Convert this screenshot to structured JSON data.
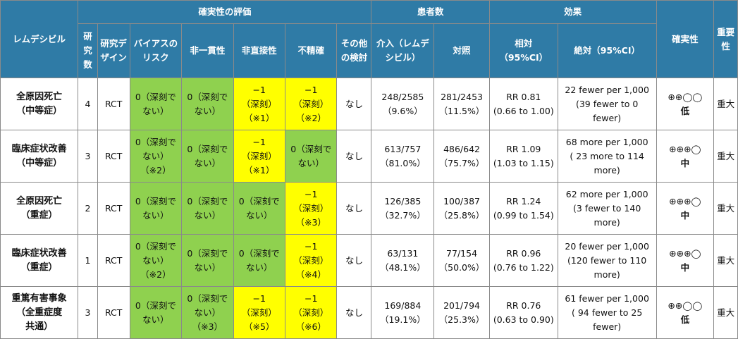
{
  "colors": {
    "header": "#2f7ba6",
    "not_serious": "#8fd14f",
    "serious": "#ffff00"
  },
  "header": {
    "outcome": "レムデシビル",
    "certainty_assessment": "確実性の評価",
    "patients": "患者数",
    "effect": "効果",
    "certainty": "確実性",
    "importance": "重要性",
    "n_studies": "研究数",
    "design": "研究デザイン",
    "risk_of_bias": "バイアスのリスク",
    "inconsistency": "非一貫性",
    "indirectness": "非直接性",
    "imprecision": "不精確",
    "other": "その他の検討",
    "intervention": "介入（レムデシビル）",
    "control": "対照",
    "relative": "相対\n（95%CI）",
    "absolute": "絶対（95%CI）"
  },
  "rows": [
    {
      "outcome": "全原因死亡\n（中等症）",
      "n": "4",
      "design": "RCT",
      "rob": "0（深刻でない）",
      "rob_c": "g",
      "incons": "0（深刻でない）",
      "incons_c": "g",
      "indirect": "−1\n（深刻）\n（※1）",
      "indirect_c": "y",
      "imprec": "−1\n（深刻）\n（※2）",
      "imprec_c": "y",
      "other": "なし",
      "intervention": "248/2585\n（9.6%）",
      "control": "281/2453\n（11.5%）",
      "relative": "RR 0.81\n(0.66 to 1.00)",
      "absolute": "22 fewer per 1,000\n(39 fewer to 0\nfewer)",
      "cert_sym": "⊕⊕◯◯",
      "cert_lvl": "低",
      "importance": "重大"
    },
    {
      "outcome": "臨床症状改善\n（中等症）",
      "n": "3",
      "design": "RCT",
      "rob": "0（深刻でない）\n（※2）",
      "rob_c": "g",
      "incons": "0（深刻でない）",
      "incons_c": "g",
      "indirect": "−1\n（深刻）\n（※1）",
      "indirect_c": "y",
      "imprec": "0（深刻でない）",
      "imprec_c": "g",
      "other": "なし",
      "intervention": "613/757\n（81.0%）",
      "control": "486/642\n（75.7%）",
      "relative": "RR 1.09\n(1.03 to 1.15)",
      "absolute": "68 more per 1,000\n( 23 more to 114\nmore)",
      "cert_sym": "⊕⊕⊕◯",
      "cert_lvl": "中",
      "importance": "重大"
    },
    {
      "outcome": "全原因死亡\n（重症）",
      "n": "2",
      "design": "RCT",
      "rob": "0（深刻でない）",
      "rob_c": "g",
      "incons": "0（深刻でない）",
      "incons_c": "g",
      "indirect": "0（深刻でない）",
      "indirect_c": "g",
      "imprec": "−1\n（深刻）\n（※3）",
      "imprec_c": "y",
      "other": "なし",
      "intervention": "126/385\n（32.7%）",
      "control": "100/387\n（25.8%）",
      "relative": "RR 1.24\n(0.99 to 1.54)",
      "absolute": "62 more per 1,000\n(3 fewer to 140\nmore)",
      "cert_sym": "⊕⊕⊕◯",
      "cert_lvl": "中",
      "importance": "重大"
    },
    {
      "outcome": "臨床症状改善\n（重症）",
      "n": "1",
      "design": "RCT",
      "rob": "0（深刻でない）\n（※2）",
      "rob_c": "g",
      "incons": "0（深刻でない）",
      "incons_c": "g",
      "indirect": "0（深刻でない）",
      "indirect_c": "g",
      "imprec": "−1\n（深刻）\n（※4）",
      "imprec_c": "y",
      "other": "なし",
      "intervention": "63/131\n（48.1%）",
      "control": "77/154\n（50.0%）",
      "relative": "RR 0.96\n(0.76 to 1.22)",
      "absolute": "20 fewer per 1,000\n(120 fewer to 110\nmore)",
      "cert_sym": "⊕⊕⊕◯",
      "cert_lvl": "中",
      "importance": "重大"
    },
    {
      "outcome": "重篤有害事象\n（全重症度\n共通）",
      "n": "3",
      "design": "RCT",
      "rob": "0（深刻でない）",
      "rob_c": "g",
      "incons": "0（深刻でない）\n（※3）",
      "incons_c": "g",
      "indirect": "−1\n（深刻）\n（※5）",
      "indirect_c": "y",
      "imprec": "−1\n（深刻）\n（※6）",
      "imprec_c": "y",
      "other": "なし",
      "intervention": "169/884\n（19.1%）",
      "control": "201/794\n（25.3%）",
      "relative": "RR 0.76\n(0.63 to 0.90)",
      "absolute": "61 fewer per 1,000\n( 94 fewer to 25\nfewer)",
      "cert_sym": "⊕⊕◯◯",
      "cert_lvl": "低",
      "importance": "重大"
    }
  ]
}
